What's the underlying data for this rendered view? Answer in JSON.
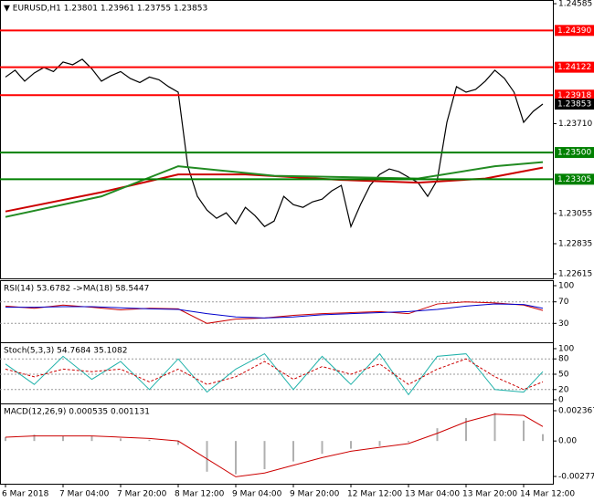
{
  "chart_data": [
    {
      "type": "line",
      "title": "▼ EURUSD,H1  1.23801 1.23961 1.23755 1.23853",
      "categories": [
        "6 Mar 2018",
        null,
        null,
        null,
        null,
        null,
        "7 Mar 04:00",
        null,
        null,
        null,
        null,
        null,
        "7 Mar 20:00",
        null,
        null,
        null,
        null,
        null,
        "8 Mar 12:00",
        null,
        null,
        null,
        null,
        null,
        "9 Mar 04:00",
        null,
        null,
        null,
        null,
        null,
        "9 Mar 20:00",
        null,
        null,
        null,
        null,
        null,
        "12 Mar 12:00",
        null,
        null,
        null,
        null,
        null,
        "13 Mar 04:00",
        null,
        null,
        null,
        null,
        null,
        "13 Mar 20:00",
        null,
        null,
        null,
        null,
        null,
        "14 Mar 12:00",
        null,
        null
      ],
      "ylim": [
        1.22582,
        1.24612
      ],
      "yticks": [
        1.24585,
        {
          "value": 1.2371,
          "label": "1.23710"
        },
        1.23055,
        1.22835,
        1.22615
      ],
      "levels": [
        {
          "value": 1.2439,
          "label": "1.24390",
          "color": "#ff0000"
        },
        {
          "value": 1.24122,
          "color": "#ff0000"
        },
        {
          "value": 1.23918,
          "color": "#ff0000"
        },
        {
          "value": 1.235,
          "label": "1.23500",
          "color": "#008000"
        },
        {
          "value": 1.23305,
          "color": "#008000"
        }
      ],
      "series": [
        {
          "color": "#000000",
          "width": 1.2,
          "values": [
            1.2405,
            1.241,
            1.2402,
            1.2408,
            1.2412,
            1.2409,
            1.2416,
            1.2414,
            1.2418,
            1.2411,
            1.2402,
            1.2406,
            1.2409,
            1.2404,
            1.2401,
            1.2405,
            1.2403,
            1.2398,
            1.2394,
            1.234,
            1.2318,
            1.2308,
            1.2302,
            1.2306,
            1.2298,
            1.231,
            1.2304,
            1.2296,
            1.23,
            1.2318,
            1.2312,
            1.231,
            1.2314,
            1.2316,
            1.2322,
            1.2326,
            1.2296,
            1.2312,
            1.2326,
            1.2334,
            1.2338,
            1.2336,
            1.2332,
            1.2328,
            1.2318,
            1.233,
            1.2372,
            1.2398,
            1.2394,
            1.2396,
            1.2402,
            1.241,
            1.2404,
            1.2394,
            1.2372,
            1.238,
            1.23853
          ]
        },
        {
          "color": "#cc0000",
          "width": 2,
          "x": [
            0,
            10,
            18,
            25,
            35,
            43,
            50,
            56
          ],
          "values": [
            1.2307,
            1.2321,
            1.2334,
            1.2334,
            1.233,
            1.2328,
            1.2331,
            1.2339
          ]
        },
        {
          "color": "#228b22",
          "width": 2,
          "x": [
            0,
            10,
            18,
            28,
            43,
            51,
            56
          ],
          "values": [
            1.2303,
            1.2318,
            1.234,
            1.2333,
            1.2331,
            1.234,
            1.2343
          ]
        }
      ]
    },
    {
      "type": "line",
      "title": "RSI(14) 53.6782 ->MA(18) 58.5447",
      "ylim": [
        0,
        100
      ],
      "yticks": [
        100,
        70,
        30
      ],
      "grid": true,
      "series": [
        {
          "color": "#cc0000",
          "width": 1,
          "x": [
            0,
            3,
            6,
            9,
            12,
            15,
            18,
            21,
            24,
            27,
            30,
            33,
            36,
            39,
            42,
            45,
            48,
            51,
            54,
            56
          ],
          "values": [
            62,
            58,
            64,
            60,
            55,
            58,
            57,
            30,
            38,
            40,
            45,
            48,
            50,
            52,
            48,
            66,
            70,
            68,
            64,
            54
          ]
        },
        {
          "color": "#0000cc",
          "width": 1,
          "x": [
            0,
            3,
            6,
            9,
            12,
            15,
            18,
            21,
            24,
            27,
            30,
            33,
            36,
            39,
            42,
            45,
            48,
            51,
            54,
            56
          ],
          "values": [
            60,
            60,
            61,
            61,
            59,
            57,
            56,
            48,
            42,
            40,
            42,
            46,
            48,
            50,
            52,
            56,
            62,
            66,
            65,
            58
          ]
        }
      ]
    },
    {
      "type": "line",
      "title": "Stoch(5,3,3) 54.7684 35.1082",
      "ylim": [
        0,
        100
      ],
      "yticks": [
        100,
        80,
        50,
        20,
        0
      ],
      "grid": true,
      "series": [
        {
          "color": "#20b2aa",
          "width": 1,
          "x": [
            0,
            3,
            6,
            9,
            12,
            15,
            18,
            21,
            24,
            27,
            30,
            33,
            36,
            39,
            42,
            45,
            48,
            51,
            54,
            56
          ],
          "values": [
            70,
            30,
            85,
            40,
            75,
            20,
            80,
            15,
            60,
            90,
            20,
            85,
            30,
            90,
            10,
            85,
            90,
            20,
            15,
            55
          ]
        },
        {
          "color": "#cc0000",
          "width": 1,
          "dash": true,
          "x": [
            0,
            3,
            6,
            9,
            12,
            15,
            18,
            21,
            24,
            27,
            30,
            33,
            36,
            39,
            42,
            45,
            48,
            51,
            54,
            56
          ],
          "values": [
            60,
            45,
            60,
            55,
            60,
            35,
            60,
            30,
            45,
            75,
            40,
            65,
            50,
            70,
            30,
            60,
            80,
            45,
            20,
            35
          ]
        }
      ]
    },
    {
      "type": "line",
      "title": "MACD(12,26,9) 0.000535 0.001131",
      "ylim": [
        -0.002771,
        0.002367
      ],
      "yticks": [
        0.002367,
        {
          "value": 0,
          "label": "0.00"
        },
        -0.002771
      ],
      "series": [
        {
          "color": "#b0b0b0",
          "style": "bar",
          "x": [
            0,
            3,
            6,
            9,
            12,
            15,
            18,
            21,
            24,
            27,
            30,
            33,
            36,
            39,
            42,
            45,
            48,
            51,
            54,
            56
          ],
          "values": [
            0.0003,
            0.0005,
            0.0004,
            0.0004,
            0.0002,
            0.0001,
            -0.0003,
            -0.0024,
            -0.0026,
            -0.0022,
            -0.0016,
            -0.001,
            -0.0006,
            -0.0004,
            -0.0001,
            0.001,
            0.0018,
            0.0022,
            0.0016,
            0.000535
          ]
        },
        {
          "color": "#cc0000",
          "width": 1,
          "x": [
            0,
            3,
            6,
            9,
            12,
            15,
            18,
            21,
            24,
            27,
            30,
            33,
            36,
            39,
            42,
            45,
            48,
            51,
            54,
            56
          ],
          "values": [
            0.0003,
            0.0004,
            0.0004,
            0.0004,
            0.0003,
            0.0002,
            0,
            -0.0014,
            -0.0028,
            -0.0025,
            -0.0019,
            -0.0013,
            -0.0008,
            -0.0005,
            -0.0002,
            0.0006,
            0.0015,
            0.0021,
            0.002,
            0.001131
          ]
        }
      ]
    }
  ]
}
